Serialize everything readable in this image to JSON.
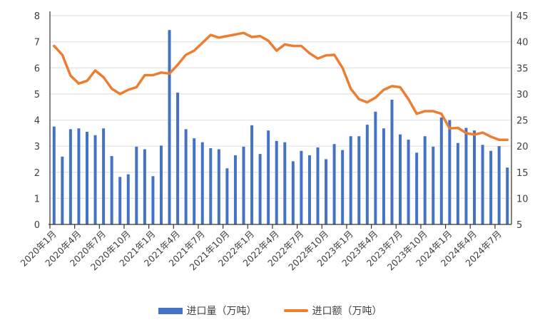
{
  "chart_data": {
    "type": "bar+line",
    "categories": [
      "2020-01",
      "2020-02",
      "2020-03",
      "2020-04",
      "2020-05",
      "2020-06",
      "2020-07",
      "2020-08",
      "2020-09",
      "2020-10",
      "2020-11",
      "2020-12",
      "2021-01",
      "2021-02",
      "2021-03",
      "2021-04",
      "2021-05",
      "2021-06",
      "2021-07",
      "2021-08",
      "2021-09",
      "2021-10",
      "2021-11",
      "2021-12",
      "2022-01",
      "2022-02",
      "2022-03",
      "2022-04",
      "2022-05",
      "2022-06",
      "2022-07",
      "2022-08",
      "2022-09",
      "2022-10",
      "2022-11",
      "2022-12",
      "2023-01",
      "2023-02",
      "2023-03",
      "2023-04",
      "2023-05",
      "2023-06",
      "2023-07",
      "2023-08",
      "2023-09",
      "2023-10",
      "2023-11",
      "2023-12",
      "2024-01",
      "2024-02",
      "2024-03",
      "2024-04",
      "2024-05",
      "2024-06",
      "2024-07",
      "2024-08"
    ],
    "tick_labels": [
      "2020年1月",
      "2020年4月",
      "2020年7月",
      "2020年10月",
      "2021年1月",
      "2021年4月",
      "2021年7月",
      "2021年10月",
      "2022年1月",
      "2022年4月",
      "2022年7月",
      "2022年10月",
      "2023年1月",
      "2023年4月",
      "2023年7月",
      "2023年10月",
      "2024年1月",
      "2024年4月",
      "2024年7月"
    ],
    "series": [
      {
        "name": "进口量（万吨）",
        "type": "bar",
        "axis": "left",
        "color": "#4472C4",
        "values": [
          3.75,
          2.6,
          3.65,
          3.68,
          3.55,
          3.42,
          3.68,
          2.62,
          1.82,
          1.92,
          2.98,
          2.88,
          1.85,
          3.02,
          7.45,
          5.05,
          3.65,
          3.3,
          3.15,
          2.92,
          2.88,
          2.15,
          2.65,
          2.98,
          3.8,
          2.7,
          3.6,
          3.2,
          3.15,
          2.42,
          2.82,
          2.65,
          2.95,
          2.5,
          3.08,
          2.85,
          3.38,
          3.38,
          3.82,
          4.32,
          3.68,
          4.78,
          3.45,
          3.25,
          2.75,
          3.38,
          2.98,
          4.1,
          4.0,
          3.12,
          3.7,
          3.6,
          3.05,
          2.82,
          3.0,
          2.18
        ]
      },
      {
        "name": "进口额（万吨）",
        "type": "line",
        "axis": "right",
        "color": "#ED7D31",
        "values": [
          39.2,
          37.5,
          33.5,
          32,
          32.5,
          34.5,
          33.2,
          31,
          30,
          30.8,
          31.3,
          33.6,
          33.6,
          34.1,
          33.9,
          35.6,
          37.5,
          38.3,
          39.8,
          41.3,
          40.8,
          41.1,
          41.4,
          41.7,
          40.9,
          41.1,
          40.2,
          38.3,
          39.5,
          39.2,
          39.2,
          37.8,
          36.8,
          37.4,
          37.5,
          35,
          31,
          29,
          28.4,
          29.3,
          30.8,
          31.5,
          31.3,
          29,
          26.2,
          26.7,
          26.7,
          26.2,
          23.4,
          23.5,
          22.5,
          22.2,
          22.6,
          21.8,
          21.2,
          21.2
        ]
      }
    ],
    "ylim_left": [
      0,
      8
    ],
    "yticks_left": [
      "0",
      "1",
      "2",
      "3",
      "4",
      "5",
      "6",
      "7",
      "8"
    ],
    "ylim_right": [
      5,
      45
    ],
    "yticks_right": [
      "5",
      "10",
      "15",
      "20",
      "25",
      "30",
      "35",
      "40",
      "45"
    ],
    "grid": true,
    "legend": "bottom"
  }
}
